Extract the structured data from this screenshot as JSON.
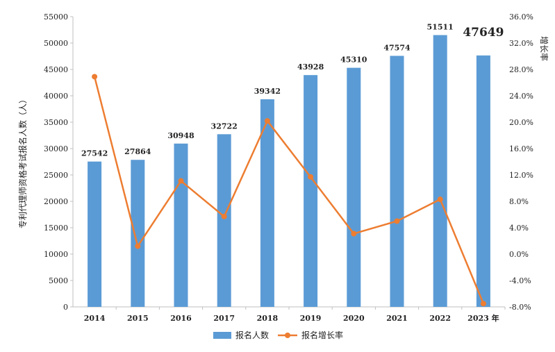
{
  "chart_data": {
    "type": "bar+line",
    "categories": [
      "2014",
      "2015",
      "2016",
      "2017",
      "2018",
      "2019",
      "2020",
      "2021",
      "2022",
      "2023"
    ],
    "x_suffix_last": "年",
    "series": [
      {
        "name": "报名人数",
        "type": "bar",
        "axis": "left",
        "color": "#5b9bd5",
        "values": [
          27542,
          27864,
          30948,
          32722,
          39342,
          43928,
          45310,
          47574,
          51511,
          47649
        ],
        "labels": [
          "27542",
          "27864",
          "30948",
          "32722",
          "39342",
          "43928",
          "45310",
          "47574",
          "51511",
          "47649"
        ],
        "highlight_index": 9,
        "highlight_color": "#e00000"
      },
      {
        "name": "报名增长率",
        "type": "line",
        "axis": "right",
        "color": "#ed7d31",
        "values": [
          26.9,
          1.2,
          11.1,
          5.7,
          20.2,
          11.7,
          3.1,
          5.0,
          8.3,
          -7.5
        ]
      }
    ],
    "ylabel": "专利代理师资格考试报名人数（人）",
    "y2label": "增长率",
    "ylim": [
      0,
      55000
    ],
    "y_ticks": [
      "0",
      "5000",
      "10000",
      "15000",
      "20000",
      "25000",
      "30000",
      "35000",
      "40000",
      "45000",
      "50000",
      "55000"
    ],
    "y2lim": [
      -8,
      36
    ],
    "y2_ticks": [
      "-8.0%",
      "-4.0%",
      "0.0%",
      "4.0%",
      "8.0%",
      "12.0%",
      "16.0%",
      "20.0%",
      "24.0%",
      "28.0%",
      "32.0%",
      "36.0%"
    ],
    "legend_placement": "bottom-center",
    "grid": false
  }
}
